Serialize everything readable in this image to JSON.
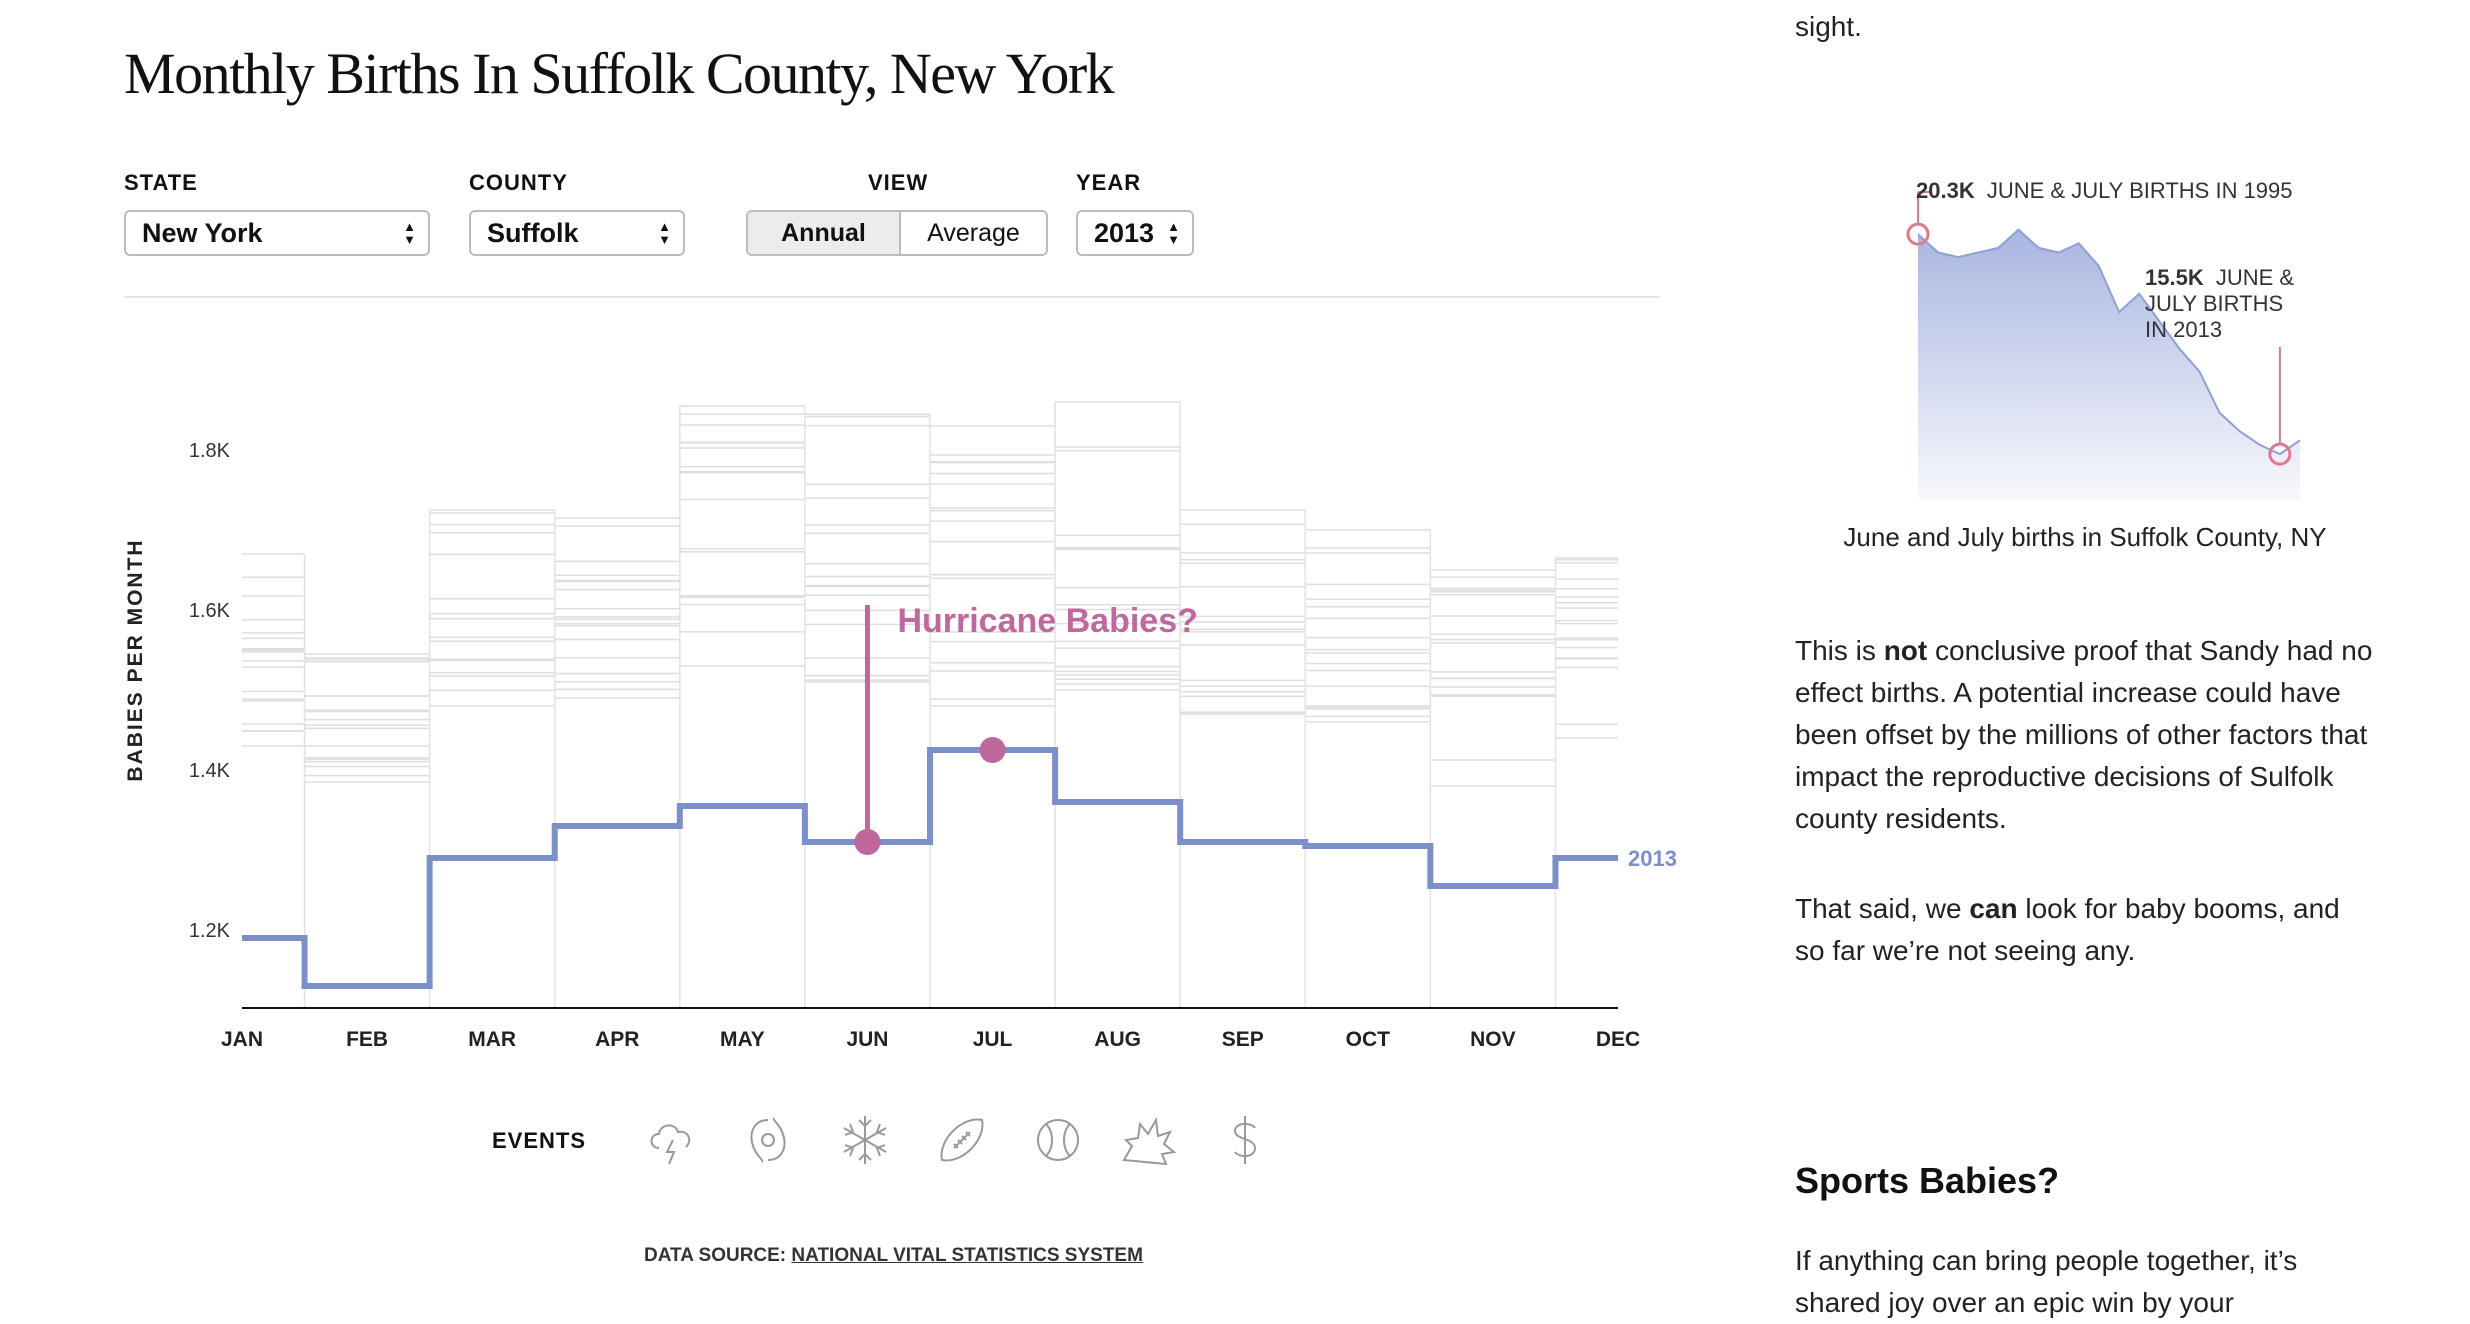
{
  "title": "Monthly Births In Suffolk County, New York",
  "controls": {
    "state": {
      "label": "STATE",
      "value": "New York"
    },
    "county": {
      "label": "COUNTY",
      "value": "Suffolk"
    },
    "view": {
      "label": "VIEW",
      "options": [
        "Annual",
        "Average"
      ],
      "active": "Annual"
    },
    "year": {
      "label": "YEAR",
      "value": "2013"
    }
  },
  "chart_data": {
    "type": "line",
    "ylabel": "BABIES PER MONTH",
    "xlabel": "",
    "categories": [
      "JAN",
      "FEB",
      "MAR",
      "APR",
      "MAY",
      "JUN",
      "JUL",
      "AUG",
      "SEP",
      "OCT",
      "NOV",
      "DEC"
    ],
    "ylim": [
      1100,
      1900
    ],
    "yticks": [
      1200,
      1400,
      1600,
      1800
    ],
    "ytick_labels": [
      "1.2K",
      "1.4K",
      "1.6K",
      "1.8K"
    ],
    "series": [
      {
        "name": "2013",
        "values": [
          1190,
          1130,
          1290,
          1330,
          1355,
          1310,
          1425,
          1360,
          1310,
          1305,
          1255,
          1290
        ],
        "color": "#7b8fcb"
      }
    ],
    "background_range": {
      "min": [
        1430,
        1385,
        1480,
        1490,
        1530,
        1510,
        1480,
        1500,
        1470,
        1460,
        1380,
        1440
      ],
      "max": [
        1670,
        1545,
        1725,
        1715,
        1855,
        1845,
        1830,
        1860,
        1725,
        1700,
        1650,
        1665
      ]
    },
    "annotation": {
      "text": "Hurricane Babies?",
      "color": "#c0679e",
      "month_start": "JUN",
      "month_peak": "JUL"
    },
    "grid": false
  },
  "events": {
    "label": "EVENTS",
    "icons": [
      "thunderstorm-icon",
      "hurricane-icon",
      "snowflake-icon",
      "football-icon",
      "baseball-icon",
      "explosion-icon",
      "dollar-icon"
    ]
  },
  "data_source": {
    "prefix": "DATA SOURCE:",
    "link": "NATIONAL VITAL STATISTICS SYSTEM"
  },
  "sidebar": {
    "top_fragment": "sight.",
    "mini_chart": {
      "chart_data": {
        "type": "area",
        "x": [
          1995,
          1996,
          1997,
          1998,
          1999,
          2000,
          2001,
          2002,
          2003,
          2004,
          2005,
          2006,
          2007,
          2008,
          2009,
          2010,
          2011,
          2012,
          2013,
          2014
        ],
        "values": [
          20.3,
          19.9,
          19.8,
          19.9,
          20.0,
          20.4,
          20.0,
          19.9,
          20.1,
          19.6,
          18.6,
          19.0,
          18.4,
          17.8,
          17.3,
          16.4,
          16.0,
          15.7,
          15.5,
          15.8
        ],
        "color": "#a9b6e0"
      },
      "annotation_high": {
        "value": "20.3K",
        "text": "JUNE & JULY BIRTHS IN 1995"
      },
      "annotation_low": {
        "value": "15.5K",
        "text_line1": "JUNE &",
        "text_line2": "JULY BIRTHS",
        "text_line3": "IN 2013"
      },
      "caption": "June and July births in Suffolk County, NY"
    },
    "paragraph1": {
      "part1": "This is ",
      "bold": "not",
      "part2": " conclusive proof that Sandy had no effect births. A potential increase could have been offset by the millions of other factors that impact the reproductive decisions of Sulfolk county residents."
    },
    "paragraph2": {
      "part1": "That said, we ",
      "bold": "can",
      "part2": " look for baby booms, and so far we’re not seeing any."
    },
    "sports_heading": "Sports Babies?",
    "paragraph3": "If anything can bring people together, it’s shared joy over an epic win by your"
  }
}
